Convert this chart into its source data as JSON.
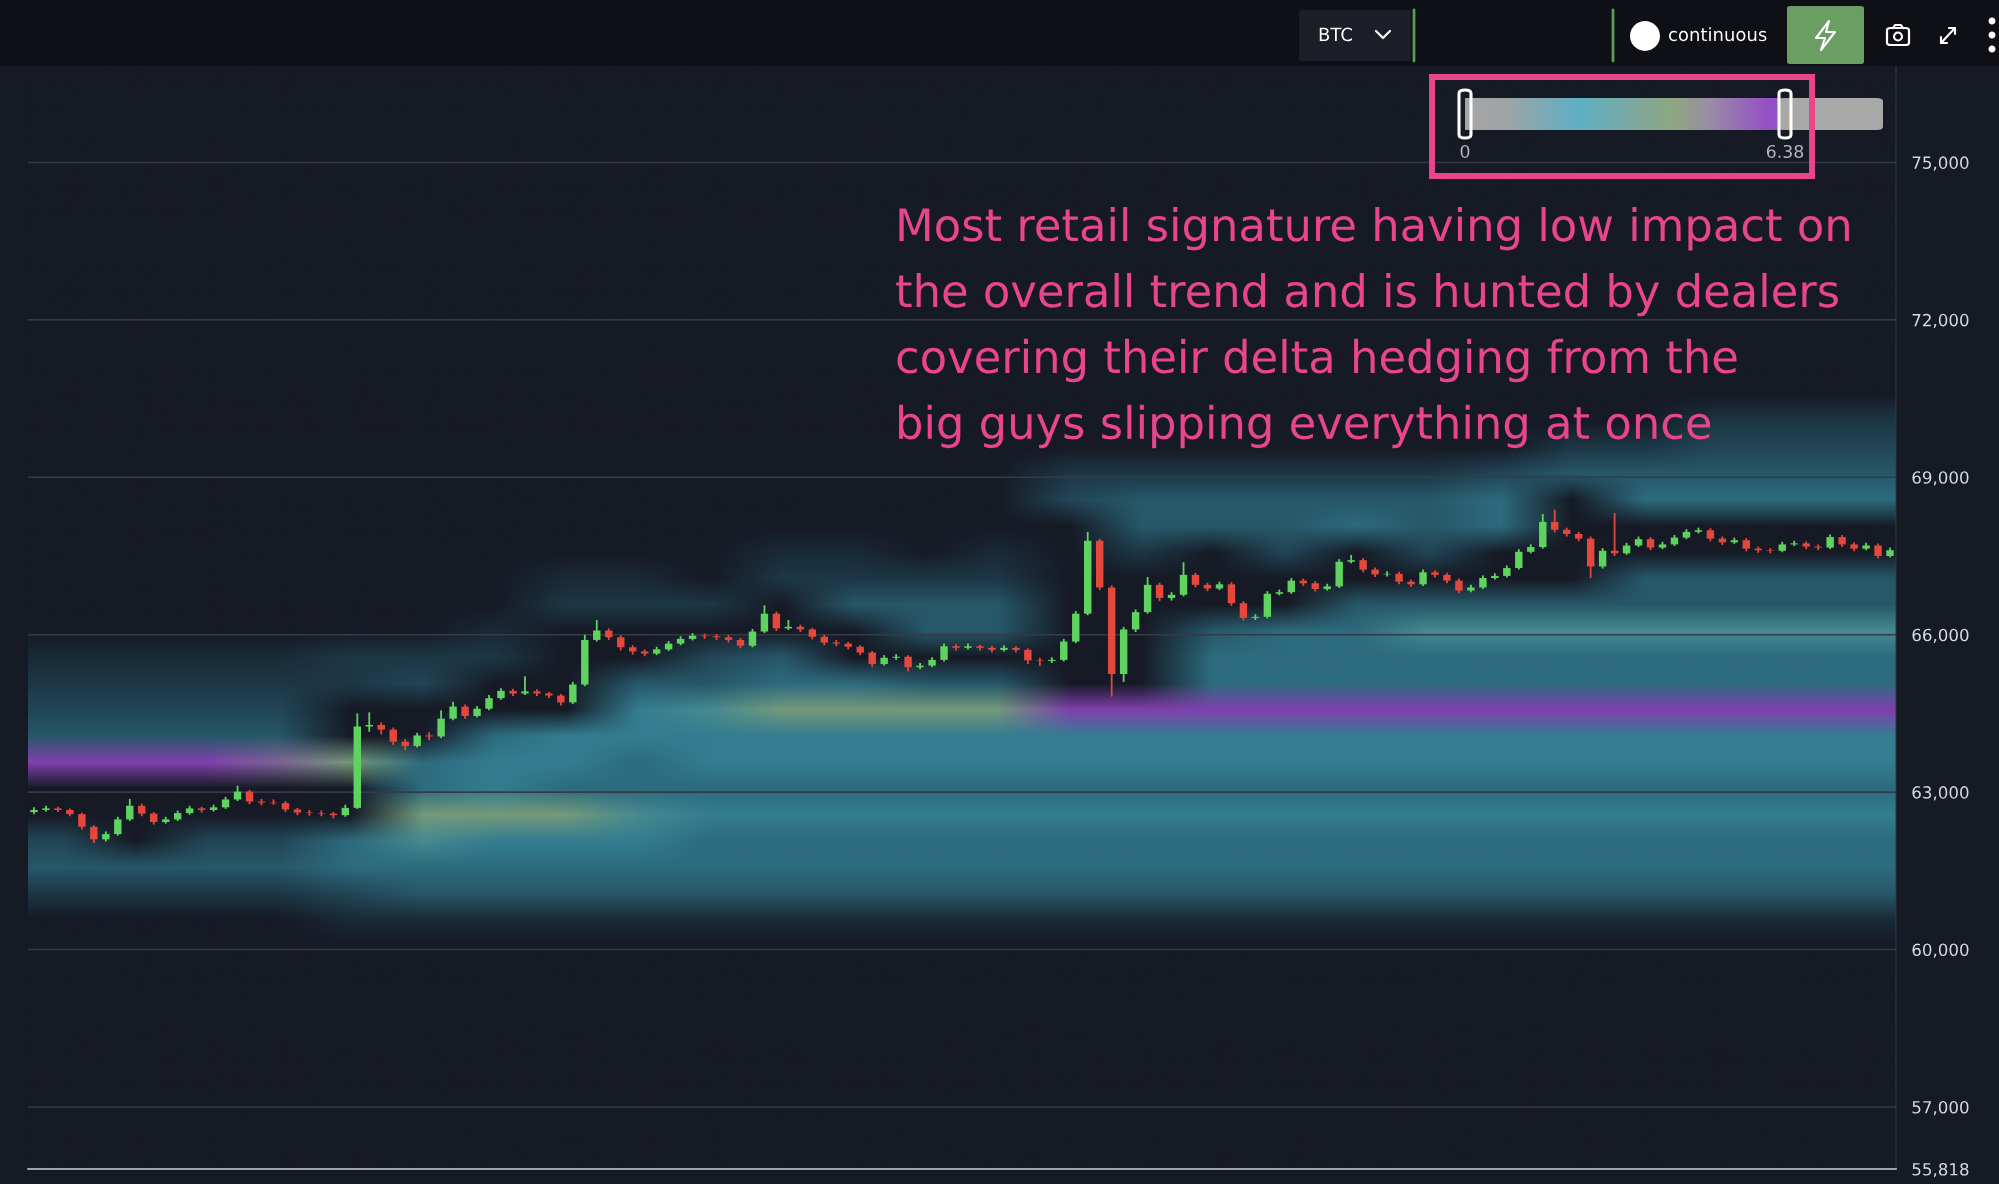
{
  "chart_data": {
    "type": "candlestick",
    "categories": [
      null,
      null,
      null,
      null,
      null,
      null,
      null,
      null,
      null,
      null,
      null,
      null,
      null,
      null,
      null,
      null,
      null,
      null,
      null,
      null,
      null,
      null,
      null,
      null,
      null,
      null,
      null,
      null,
      null,
      null,
      null,
      null,
      null,
      null,
      null,
      null,
      null,
      null,
      null,
      null,
      null,
      null,
      null,
      null,
      null,
      null,
      null,
      null,
      null,
      null,
      null,
      null,
      null,
      null,
      null,
      null,
      null,
      null,
      null,
      null,
      null,
      null,
      null,
      null,
      null,
      null,
      null,
      null,
      null,
      null,
      null,
      null,
      null,
      null,
      null,
      null,
      null,
      null,
      null,
      null,
      null,
      null,
      null,
      null,
      null,
      null,
      null,
      null,
      null,
      null,
      null,
      null,
      null,
      null,
      null,
      null,
      null,
      null,
      null,
      null,
      null,
      null,
      null,
      null,
      null,
      null,
      null,
      null,
      null,
      null,
      null,
      null,
      null,
      null,
      null,
      null,
      null,
      null,
      null,
      null,
      null,
      null,
      null,
      null,
      null,
      null,
      null,
      null,
      null,
      null,
      null,
      null,
      null,
      null,
      null,
      null,
      null,
      null,
      null,
      null,
      null,
      null,
      null,
      null,
      null,
      null,
      null,
      null,
      null,
      null,
      null,
      null,
      null,
      null,
      null,
      null
    ],
    "ohlc": [
      [
        62620,
        62710,
        62580,
        62660
      ],
      [
        62660,
        62740,
        62630,
        62690
      ],
      [
        62690,
        62720,
        62620,
        62660
      ],
      [
        62660,
        62690,
        62540,
        62580
      ],
      [
        62580,
        62610,
        62290,
        62340
      ],
      [
        62340,
        62370,
        62030,
        62100
      ],
      [
        62100,
        62250,
        62060,
        62200
      ],
      [
        62200,
        62530,
        62170,
        62480
      ],
      [
        62480,
        62870,
        62450,
        62740
      ],
      [
        62740,
        62780,
        62540,
        62590
      ],
      [
        62590,
        62620,
        62380,
        62430
      ],
      [
        62430,
        62530,
        62400,
        62480
      ],
      [
        62480,
        62650,
        62450,
        62600
      ],
      [
        62600,
        62740,
        62570,
        62690
      ],
      [
        62690,
        62720,
        62610,
        62660
      ],
      [
        62660,
        62760,
        62630,
        62710
      ],
      [
        62710,
        62910,
        62680,
        62860
      ],
      [
        62860,
        63120,
        62830,
        63010
      ],
      [
        63010,
        63040,
        62770,
        62820
      ],
      [
        62820,
        62870,
        62750,
        62800
      ],
      [
        62800,
        62860,
        62760,
        62790
      ],
      [
        62790,
        62830,
        62620,
        62670
      ],
      [
        62670,
        62700,
        62560,
        62610
      ],
      [
        62610,
        62660,
        62550,
        62600
      ],
      [
        62600,
        62650,
        62540,
        62590
      ],
      [
        62590,
        62620,
        62500,
        62560
      ],
      [
        62560,
        62760,
        62530,
        62700
      ],
      [
        62700,
        64500,
        62680,
        64250
      ],
      [
        64250,
        64520,
        64150,
        64280
      ],
      [
        64280,
        64330,
        64100,
        64190
      ],
      [
        64190,
        64230,
        63900,
        63960
      ],
      [
        63960,
        64010,
        63800,
        63880
      ],
      [
        63880,
        64130,
        63850,
        64080
      ],
      [
        64080,
        64140,
        63990,
        64060
      ],
      [
        64060,
        64560,
        64030,
        64400
      ],
      [
        64400,
        64720,
        64370,
        64630
      ],
      [
        64630,
        64670,
        64400,
        64450
      ],
      [
        64450,
        64640,
        64420,
        64590
      ],
      [
        64590,
        64850,
        64560,
        64790
      ],
      [
        64790,
        64980,
        64760,
        64930
      ],
      [
        64930,
        64970,
        64830,
        64880
      ],
      [
        64880,
        65210,
        64850,
        64920
      ],
      [
        64920,
        64960,
        64830,
        64880
      ],
      [
        64880,
        64910,
        64790,
        64840
      ],
      [
        64840,
        64870,
        64650,
        64710
      ],
      [
        64710,
        65100,
        64680,
        65050
      ],
      [
        65050,
        66000,
        65020,
        65900
      ],
      [
        65900,
        66280,
        65870,
        66080
      ],
      [
        66080,
        66120,
        65900,
        65950
      ],
      [
        65950,
        65990,
        65700,
        65760
      ],
      [
        65760,
        65800,
        65620,
        65680
      ],
      [
        65680,
        65720,
        65590,
        65640
      ],
      [
        65640,
        65770,
        65610,
        65720
      ],
      [
        65720,
        65880,
        65690,
        65830
      ],
      [
        65830,
        65970,
        65800,
        65920
      ],
      [
        65920,
        66030,
        65890,
        65980
      ],
      [
        65980,
        66020,
        65920,
        65970
      ],
      [
        65970,
        66010,
        65900,
        65950
      ],
      [
        65950,
        65990,
        65850,
        65900
      ],
      [
        65900,
        65940,
        65740,
        65790
      ],
      [
        65790,
        66110,
        65760,
        66060
      ],
      [
        66060,
        66560,
        66030,
        66400
      ],
      [
        66400,
        66440,
        66070,
        66120
      ],
      [
        66120,
        66280,
        66090,
        66150
      ],
      [
        66150,
        66190,
        66050,
        66100
      ],
      [
        66100,
        66130,
        65910,
        65960
      ],
      [
        65960,
        66000,
        65800,
        65850
      ],
      [
        65850,
        65900,
        65780,
        65830
      ],
      [
        65830,
        65860,
        65720,
        65770
      ],
      [
        65770,
        65800,
        65610,
        65660
      ],
      [
        65660,
        65690,
        65380,
        65440
      ],
      [
        65440,
        65610,
        65410,
        65560
      ],
      [
        65560,
        65630,
        65520,
        65580
      ],
      [
        65580,
        65610,
        65300,
        65380
      ],
      [
        65380,
        65460,
        65340,
        65410
      ],
      [
        65410,
        65570,
        65380,
        65520
      ],
      [
        65520,
        65830,
        65490,
        65780
      ],
      [
        65780,
        65820,
        65700,
        65750
      ],
      [
        65750,
        65830,
        65720,
        65780
      ],
      [
        65780,
        65810,
        65700,
        65750
      ],
      [
        65750,
        65790,
        65660,
        65710
      ],
      [
        65710,
        65800,
        65680,
        65750
      ],
      [
        65750,
        65780,
        65660,
        65710
      ],
      [
        65710,
        65740,
        65440,
        65510
      ],
      [
        65510,
        65560,
        65400,
        65500
      ],
      [
        65500,
        65570,
        65460,
        65520
      ],
      [
        65520,
        65920,
        65490,
        65870
      ],
      [
        65870,
        66450,
        65840,
        66400
      ],
      [
        66400,
        67960,
        66370,
        67790
      ],
      [
        67790,
        67830,
        66850,
        66900
      ],
      [
        66900,
        66940,
        64820,
        65250
      ],
      [
        65250,
        66150,
        65100,
        66100
      ],
      [
        66100,
        66480,
        66050,
        66430
      ],
      [
        66430,
        67100,
        66400,
        66950
      ],
      [
        66950,
        66990,
        66640,
        66700
      ],
      [
        66700,
        66810,
        66650,
        66760
      ],
      [
        66760,
        67380,
        66730,
        67140
      ],
      [
        67140,
        67180,
        66900,
        66950
      ],
      [
        66950,
        66990,
        66830,
        66880
      ],
      [
        66880,
        67010,
        66850,
        66960
      ],
      [
        66960,
        67000,
        66550,
        66600
      ],
      [
        66600,
        66640,
        66270,
        66320
      ],
      [
        66320,
        66390,
        66280,
        66340
      ],
      [
        66340,
        66830,
        66310,
        66780
      ],
      [
        66780,
        66860,
        66750,
        66810
      ],
      [
        66810,
        67080,
        66780,
        67030
      ],
      [
        67030,
        67070,
        66930,
        66980
      ],
      [
        66980,
        67020,
        66820,
        66870
      ],
      [
        66870,
        66970,
        66840,
        66920
      ],
      [
        66920,
        67440,
        66890,
        67390
      ],
      [
        67390,
        67520,
        67360,
        67420
      ],
      [
        67420,
        67460,
        67190,
        67240
      ],
      [
        67240,
        67280,
        67100,
        67150
      ],
      [
        67150,
        67210,
        67110,
        67160
      ],
      [
        67160,
        67200,
        66960,
        67010
      ],
      [
        67010,
        67050,
        66910,
        66960
      ],
      [
        66960,
        67240,
        66930,
        67190
      ],
      [
        67190,
        67230,
        67090,
        67140
      ],
      [
        67140,
        67180,
        66980,
        67030
      ],
      [
        67030,
        67070,
        66790,
        66840
      ],
      [
        66840,
        66950,
        66810,
        66900
      ],
      [
        66900,
        67130,
        66870,
        67080
      ],
      [
        67080,
        67170,
        67050,
        67120
      ],
      [
        67120,
        67320,
        67090,
        67270
      ],
      [
        67270,
        67630,
        67240,
        67580
      ],
      [
        67580,
        67720,
        67550,
        67670
      ],
      [
        67670,
        68300,
        67640,
        68150
      ],
      [
        68150,
        68380,
        67950,
        68000
      ],
      [
        68000,
        68040,
        67870,
        67920
      ],
      [
        67920,
        67960,
        67780,
        67830
      ],
      [
        67830,
        67870,
        67080,
        67300
      ],
      [
        67300,
        67650,
        67260,
        67600
      ],
      [
        67600,
        68320,
        67500,
        67550
      ],
      [
        67550,
        67750,
        67520,
        67700
      ],
      [
        67700,
        67870,
        67670,
        67820
      ],
      [
        67820,
        67860,
        67610,
        67660
      ],
      [
        67660,
        67770,
        67630,
        67720
      ],
      [
        67720,
        67900,
        67690,
        67850
      ],
      [
        67850,
        68010,
        67820,
        67960
      ],
      [
        67960,
        68040,
        67930,
        67990
      ],
      [
        67990,
        68030,
        67780,
        67830
      ],
      [
        67830,
        67870,
        67710,
        67760
      ],
      [
        67760,
        67850,
        67730,
        67800
      ],
      [
        67800,
        67840,
        67590,
        67640
      ],
      [
        67640,
        67680,
        67560,
        67610
      ],
      [
        67610,
        67650,
        67550,
        67600
      ],
      [
        67600,
        67770,
        67570,
        67720
      ],
      [
        67720,
        67790,
        67690,
        67740
      ],
      [
        67740,
        67780,
        67630,
        67680
      ],
      [
        67680,
        67720,
        67610,
        67660
      ],
      [
        67660,
        67910,
        67630,
        67860
      ],
      [
        67860,
        67900,
        67670,
        67720
      ],
      [
        67720,
        67760,
        67590,
        67640
      ],
      [
        67640,
        67750,
        67610,
        67700
      ],
      [
        67700,
        67740,
        67450,
        67500
      ],
      [
        67500,
        67660,
        67470,
        67610
      ]
    ],
    "ylim": [
      55818,
      76818
    ],
    "yticks": [
      {
        "value": 55818,
        "label": "55,818"
      },
      {
        "value": 57000,
        "label": "57,000"
      },
      {
        "value": 60000,
        "label": "60,000"
      },
      {
        "value": 63000,
        "label": "63,000"
      },
      {
        "value": 66000,
        "label": "66,000"
      },
      {
        "value": 69000,
        "label": "69,000"
      },
      {
        "value": 72000,
        "label": "72,000"
      },
      {
        "value": 75000,
        "label": "75,000"
      }
    ],
    "grid": "y",
    "tick_labels": "y",
    "annotations": [
      "Most retail signature having low impact on\nthe overall trend and is hunted by dealers\ncovering their delta hedging from the\nbig guys slipping everything at once",
      "BTC",
      "continuous",
      "0",
      "6.38"
    ]
  }
}
